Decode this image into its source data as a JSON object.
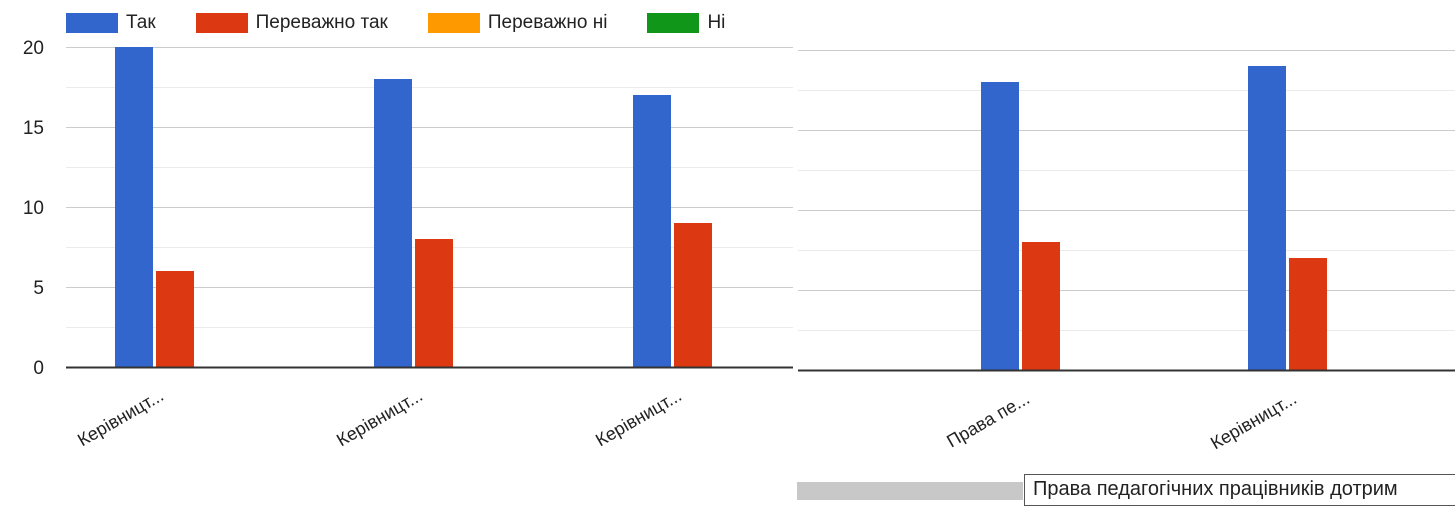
{
  "chart_data": [
    {
      "type": "bar",
      "categories": [
        "Керівницт...",
        "Керівницт...",
        "Керівницт..."
      ],
      "series": [
        {
          "name": "Так",
          "values": [
            20,
            18,
            17
          ]
        },
        {
          "name": "Переважно так",
          "values": [
            6,
            8,
            9
          ]
        },
        {
          "name": "Переважно ні",
          "values": [
            0,
            0,
            0
          ]
        },
        {
          "name": "Ні",
          "values": [
            0,
            0,
            0
          ]
        }
      ],
      "ylim": [
        0,
        20
      ],
      "yticks": [
        "0",
        "5",
        "10",
        "15",
        "20"
      ],
      "grid": true,
      "legend": "top"
    },
    {
      "type": "bar",
      "categories": [
        "Права пе...",
        "Керівницт..."
      ],
      "series": [
        {
          "name": "Так",
          "values": [
            18,
            19
          ]
        },
        {
          "name": "Переважно так",
          "values": [
            8,
            7
          ]
        },
        {
          "name": "Переважно ні",
          "values": [
            0,
            0
          ]
        },
        {
          "name": "Ні",
          "values": [
            0,
            0
          ]
        }
      ],
      "ylim": [
        0,
        20
      ],
      "grid": true
    }
  ],
  "legend": {
    "items": [
      {
        "label": "Так",
        "color": "#3366cc"
      },
      {
        "label": "Переважно так",
        "color": "#dc3912"
      },
      {
        "label": "Переважно ні",
        "color": "#ff9900"
      },
      {
        "label": "Ні",
        "color": "#109618"
      }
    ]
  },
  "tooltip": {
    "text": "Права педагогічних працівників дотрим"
  },
  "colors": {
    "series": [
      "#3366cc",
      "#dc3912",
      "#ff9900",
      "#109618"
    ]
  }
}
